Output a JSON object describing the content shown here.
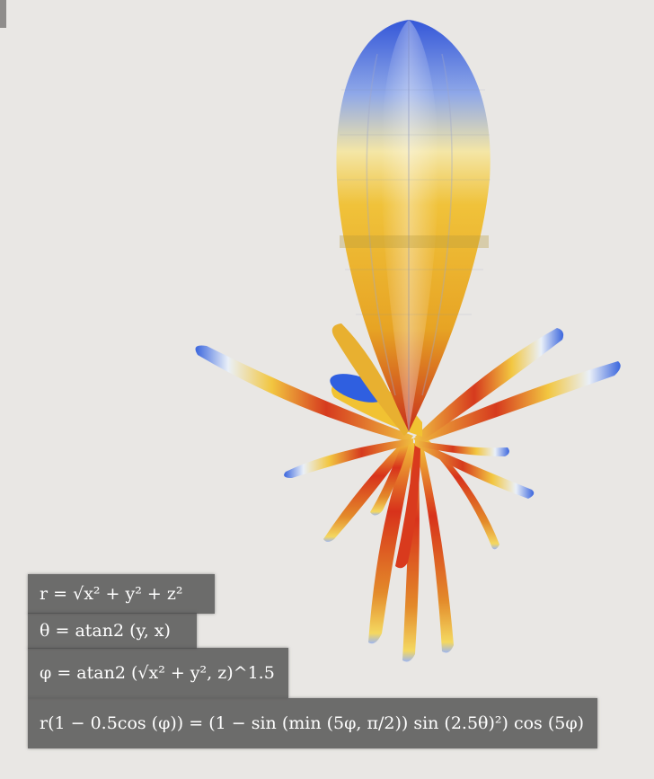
{
  "equations": {
    "eq1": "r = √x² + y² + z²",
    "eq2": "θ = atan2 (y, x)",
    "eq3": "φ = atan2 (√x² + y², z)^1.5",
    "eq4": "r(1 − 0.5cos (φ)) = (1 − sin (min (5φ, π/2)) sin (2.5θ)²) cos (5φ)"
  },
  "equation_parts": {
    "r": "r",
    "theta": "θ",
    "phi": "φ",
    "atan2": "atan2",
    "exp_1_5": "1.5",
    "pi": "π",
    "two": "2"
  },
  "colors": {
    "background": "#e9e7e4",
    "equation_box": "#505050",
    "surface_blue": "#2f5fe0",
    "surface_yellow": "#f1c232",
    "surface_red": "#c81e14"
  },
  "icons": {
    "corner": "corner-tab"
  }
}
